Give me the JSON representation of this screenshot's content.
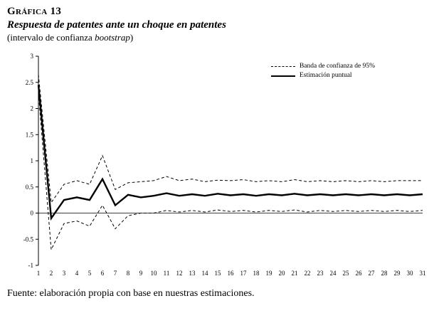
{
  "header": {
    "title": "Gráfica 13",
    "subtitle": "Respuesta de patentes ante un choque en patentes",
    "note_pre": "(intervalo de confianza ",
    "note_italic": "bootstrap",
    "note_post": ")"
  },
  "legend": {
    "band": "Banda de confianza de 95%",
    "point": "Estimación puntual"
  },
  "footer": {
    "source": "Fuente: elaboración propia con base en nuestras estimaciones."
  },
  "chart_data": {
    "type": "line",
    "title": "Respuesta de patentes ante un choque en patentes",
    "subtitle": "(intervalo de confianza bootstrap)",
    "xlabel": "",
    "ylabel": "",
    "x": [
      1,
      2,
      3,
      4,
      5,
      6,
      7,
      8,
      9,
      10,
      11,
      12,
      13,
      14,
      15,
      16,
      17,
      18,
      19,
      20,
      21,
      22,
      23,
      24,
      25,
      26,
      27,
      28,
      29,
      30,
      31
    ],
    "ylim": [
      -1,
      3
    ],
    "yticks": [
      3,
      2.5,
      2,
      1.5,
      1,
      0.5,
      0,
      -0.5,
      -1
    ],
    "grid": false,
    "legend_position": "top-right",
    "line_color": "#000000",
    "series": [
      {
        "name": "Banda de confianza de 95% (superior)",
        "style": "dashed",
        "values": [
          2.65,
          0.2,
          0.55,
          0.62,
          0.55,
          1.1,
          0.45,
          0.58,
          0.6,
          0.62,
          0.7,
          0.62,
          0.65,
          0.6,
          0.63,
          0.62,
          0.64,
          0.6,
          0.62,
          0.6,
          0.64,
          0.6,
          0.62,
          0.6,
          0.62,
          0.6,
          0.62,
          0.6,
          0.62,
          0.62,
          0.62
        ]
      },
      {
        "name": "Estimación puntual",
        "style": "solid",
        "values": [
          2.45,
          -0.1,
          0.25,
          0.3,
          0.25,
          0.65,
          0.15,
          0.35,
          0.3,
          0.33,
          0.38,
          0.33,
          0.36,
          0.33,
          0.37,
          0.34,
          0.36,
          0.33,
          0.36,
          0.34,
          0.37,
          0.34,
          0.36,
          0.34,
          0.36,
          0.34,
          0.36,
          0.34,
          0.36,
          0.34,
          0.36
        ]
      },
      {
        "name": "Banda de confianza de 95% (inferior)",
        "style": "dashed",
        "values": [
          2.3,
          -0.7,
          -0.2,
          -0.15,
          -0.25,
          0.15,
          -0.3,
          -0.05,
          0.0,
          0.0,
          0.05,
          0.02,
          0.05,
          0.02,
          0.06,
          0.03,
          0.05,
          0.02,
          0.05,
          0.03,
          0.06,
          0.02,
          0.05,
          0.03,
          0.05,
          0.03,
          0.05,
          0.03,
          0.05,
          0.03,
          0.05
        ]
      }
    ]
  }
}
